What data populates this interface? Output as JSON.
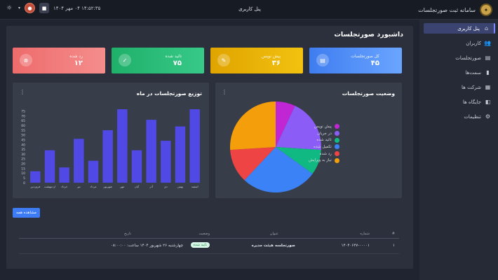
{
  "header": {
    "app_title": "سامانه ثبت صورتجلسات",
    "panel_title": "پنل کاربری",
    "datetime": "۱۴:۵۲:۳۵ ۰۴ مهر ۱۴۰۴"
  },
  "sidebar": {
    "items": [
      {
        "label": "پنل کاربری",
        "icon": "home-icon",
        "active": true
      },
      {
        "label": "کاربران",
        "icon": "users-icon",
        "active": false
      },
      {
        "label": "صورتجلسات",
        "icon": "document-icon",
        "active": false
      },
      {
        "label": "سمت‌ها",
        "icon": "briefcase-icon",
        "active": false
      },
      {
        "label": "شرکت ها",
        "icon": "building-icon",
        "active": false
      },
      {
        "label": "جایگاه ها",
        "icon": "seat-icon",
        "active": false
      },
      {
        "label": "تنظیمات",
        "icon": "gear-icon",
        "active": false
      }
    ]
  },
  "page": {
    "title": "داشبورد صورتجلسات"
  },
  "stats": [
    {
      "label": "کل صورتجلسات",
      "value": "۴۵",
      "color": "#3b82f6",
      "icon": "document-icon"
    },
    {
      "label": "پیش نویس",
      "value": "۳۶",
      "color": "#eab308",
      "icon": "edit-icon"
    },
    {
      "label": "تائید شده",
      "value": "۷۵",
      "color": "#22c55e",
      "icon": "check-icon"
    },
    {
      "label": "رد شده",
      "value": "۱۲",
      "color": "#ef4444",
      "icon": "close-circle-icon"
    }
  ],
  "status_panel": {
    "title": "وضعیت صورتجلسات",
    "legend": [
      {
        "label": "پیش نویس",
        "color": "#c026d3"
      },
      {
        "label": "در جریان",
        "color": "#8b5cf6"
      },
      {
        "label": "تائید شده",
        "color": "#10b981"
      },
      {
        "label": "تکمیل شده",
        "color": "#3b82f6"
      },
      {
        "label": "رد شده",
        "color": "#ef4444"
      },
      {
        "label": "نیاز به ویرایش",
        "color": "#f59e0b"
      }
    ]
  },
  "monthly_panel": {
    "title": "توزیع صورتجلسات در ماه"
  },
  "chart_data": [
    {
      "type": "bar",
      "title": "توزیع صورتجلسات در ماه",
      "categories": [
        "فروردین",
        "اردیبهشت",
        "خرداد",
        "تیر",
        "مرداد",
        "شهریور",
        "مهر",
        "آبان",
        "آذر",
        "دی",
        "بهمن",
        "اسفند"
      ],
      "values": [
        12,
        34,
        16,
        46,
        23,
        55,
        77,
        34,
        66,
        44,
        59,
        77
      ],
      "ylim": [
        0,
        80
      ],
      "yticks": [
        0,
        5,
        10,
        15,
        20,
        25,
        30,
        35,
        40,
        45,
        50,
        55,
        60,
        65,
        70,
        75
      ],
      "color": "#5049e5",
      "grid": false
    },
    {
      "type": "pie",
      "title": "وضعیت صورتجلسات",
      "slices": [
        {
          "label": "پیش نویس",
          "value": 7,
          "color": "#c026d3"
        },
        {
          "label": "در جریان",
          "value": 19,
          "color": "#8b5cf6"
        },
        {
          "label": "تائید شده",
          "value": 9,
          "color": "#10b981"
        },
        {
          "label": "تکمیل شده",
          "value": 27,
          "color": "#3b82f6"
        },
        {
          "label": "رد شده",
          "value": 12,
          "color": "#ef4444"
        },
        {
          "label": "نیاز به ویرایش",
          "value": 26,
          "color": "#f59e0b"
        }
      ],
      "legend": "left"
    }
  ],
  "actions": {
    "view_all": "مشاهده همه"
  },
  "table": {
    "headers": {
      "hash": "#",
      "number": "شماره",
      "title": "عنوان",
      "status": "وضعیت",
      "date": "تاریخ"
    },
    "rows": [
      {
        "index": "۱",
        "number": "۱۴۰۴۰۶۲۷-۰۰۰۰۱",
        "title": "صورتجلسه هیئت مدیره",
        "status": "تایید شده",
        "date": "چهارشنبه ۲۶ شهریور ۱۴۰۴ ساعت: ۰۸:۰۰:۰۰"
      }
    ]
  }
}
